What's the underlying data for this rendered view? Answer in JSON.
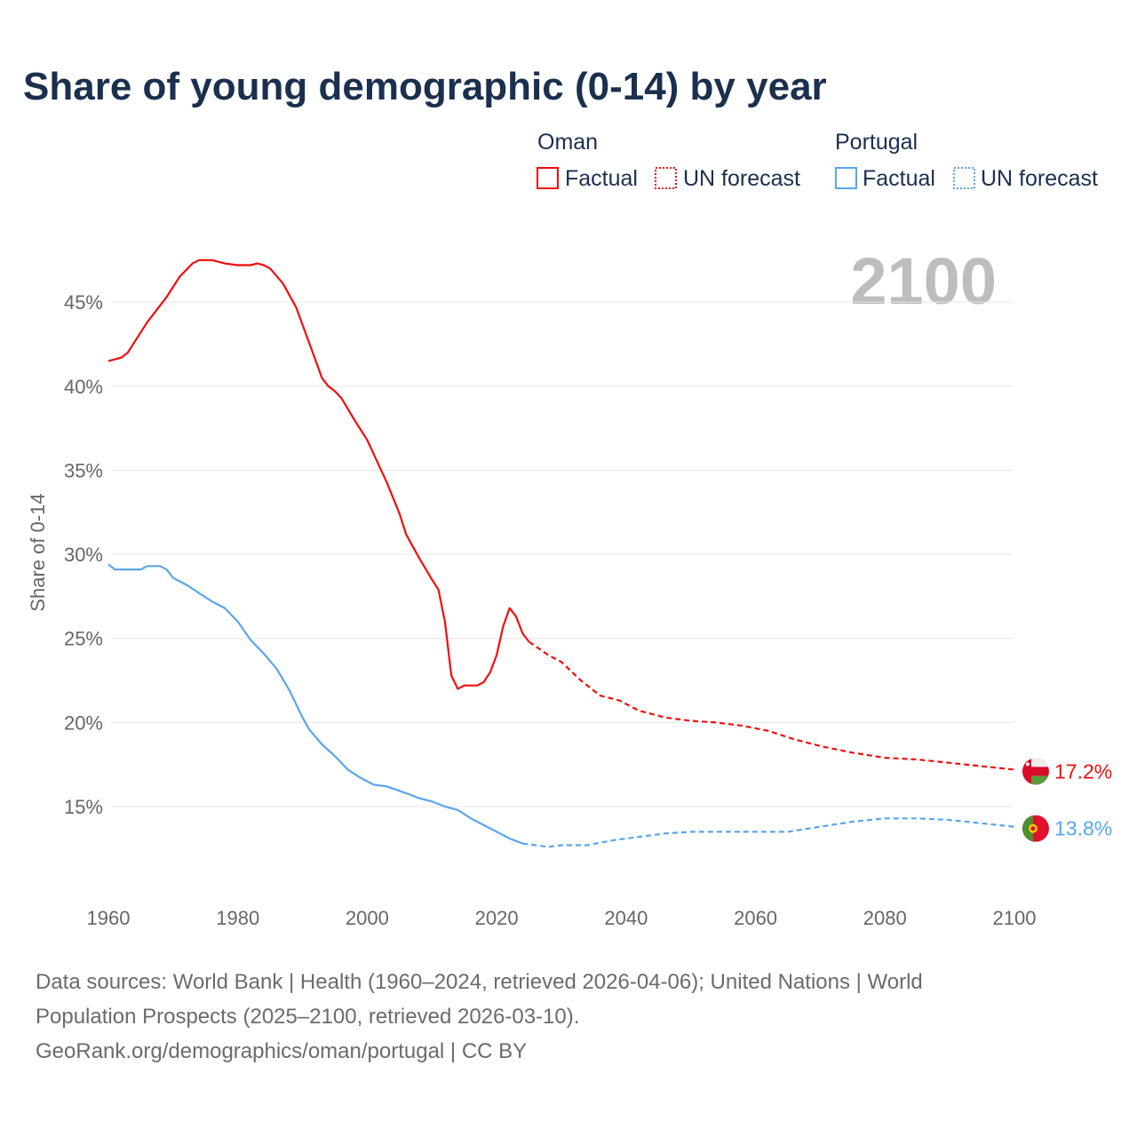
{
  "chart_data": {
    "type": "line",
    "title": "Share of young demographic (0-14) by year",
    "xlabel": "",
    "ylabel": "Share of 0-14",
    "xlim": [
      1960,
      2100
    ],
    "ylim": [
      10.5,
      48.5
    ],
    "x_ticks": [
      1960,
      1980,
      2000,
      2020,
      2040,
      2060,
      2080,
      2100
    ],
    "y_ticks": [
      15,
      20,
      25,
      30,
      35,
      40,
      45
    ],
    "y_tick_suffix": "%",
    "current_year_label": "2100",
    "grid": true,
    "legend": {
      "placement": "top-right",
      "groups": [
        {
          "country": "Oman",
          "factual": "Factual",
          "forecast": "UN forecast",
          "color": "#f00d0d"
        },
        {
          "country": "Portugal",
          "factual": "Factual",
          "forecast": "UN forecast",
          "color": "#5aa5ec"
        }
      ]
    },
    "series": [
      {
        "name": "Oman",
        "color": "#f00d0d",
        "end_label": "17.2%",
        "factual": [
          [
            1960,
            41.5
          ],
          [
            1962,
            41.7
          ],
          [
            1963,
            42.0
          ],
          [
            1966,
            43.8
          ],
          [
            1969,
            45.3
          ],
          [
            1971,
            46.5
          ],
          [
            1973,
            47.3
          ],
          [
            1974,
            47.5
          ],
          [
            1976,
            47.5
          ],
          [
            1978,
            47.3
          ],
          [
            1980,
            47.2
          ],
          [
            1982,
            47.2
          ],
          [
            1983,
            47.3
          ],
          [
            1984,
            47.2
          ],
          [
            1985,
            47.0
          ],
          [
            1987,
            46.1
          ],
          [
            1989,
            44.7
          ],
          [
            1991,
            42.6
          ],
          [
            1993,
            40.5
          ],
          [
            1994,
            40.0
          ],
          [
            1995,
            39.7
          ],
          [
            1996,
            39.3
          ],
          [
            1998,
            38.0
          ],
          [
            2000,
            36.8
          ],
          [
            2003,
            34.3
          ],
          [
            2005,
            32.4
          ],
          [
            2006,
            31.2
          ],
          [
            2008,
            29.8
          ],
          [
            2010,
            28.5
          ],
          [
            2011,
            27.9
          ],
          [
            2012,
            26.0
          ],
          [
            2013,
            22.8
          ],
          [
            2014,
            22.0
          ],
          [
            2015,
            22.2
          ],
          [
            2016,
            22.2
          ],
          [
            2017,
            22.2
          ],
          [
            2018,
            22.4
          ],
          [
            2019,
            23.0
          ],
          [
            2020,
            24.0
          ],
          [
            2021,
            25.7
          ],
          [
            2022,
            26.8
          ],
          [
            2023,
            26.3
          ],
          [
            2024,
            25.3
          ],
          [
            2025,
            24.8
          ]
        ],
        "forecast": [
          [
            2025,
            24.8
          ],
          [
            2028,
            24.0
          ],
          [
            2030,
            23.6
          ],
          [
            2033,
            22.5
          ],
          [
            2036,
            21.6
          ],
          [
            2039,
            21.3
          ],
          [
            2042,
            20.7
          ],
          [
            2046,
            20.3
          ],
          [
            2050,
            20.1
          ],
          [
            2054,
            20.0
          ],
          [
            2058,
            19.8
          ],
          [
            2062,
            19.5
          ],
          [
            2066,
            19.0
          ],
          [
            2070,
            18.6
          ],
          [
            2075,
            18.2
          ],
          [
            2080,
            17.9
          ],
          [
            2085,
            17.8
          ],
          [
            2090,
            17.6
          ],
          [
            2095,
            17.4
          ],
          [
            2100,
            17.2
          ]
        ]
      },
      {
        "name": "Portugal",
        "color": "#5aa5ec",
        "end_label": "13.8%",
        "factual": [
          [
            1960,
            29.4
          ],
          [
            1961,
            29.1
          ],
          [
            1965,
            29.1
          ],
          [
            1966,
            29.3
          ],
          [
            1968,
            29.3
          ],
          [
            1969,
            29.1
          ],
          [
            1970,
            28.6
          ],
          [
            1972,
            28.2
          ],
          [
            1974,
            27.7
          ],
          [
            1976,
            27.2
          ],
          [
            1978,
            26.8
          ],
          [
            1980,
            26.0
          ],
          [
            1982,
            24.9
          ],
          [
            1984,
            24.1
          ],
          [
            1986,
            23.2
          ],
          [
            1988,
            21.9
          ],
          [
            1990,
            20.3
          ],
          [
            1991,
            19.6
          ],
          [
            1993,
            18.7
          ],
          [
            1995,
            18.0
          ],
          [
            1997,
            17.2
          ],
          [
            1999,
            16.7
          ],
          [
            2001,
            16.3
          ],
          [
            2003,
            16.2
          ],
          [
            2006,
            15.8
          ],
          [
            2008,
            15.5
          ],
          [
            2010,
            15.3
          ],
          [
            2012,
            15.0
          ],
          [
            2014,
            14.8
          ],
          [
            2016,
            14.3
          ],
          [
            2020,
            13.5
          ],
          [
            2022,
            13.1
          ],
          [
            2024,
            12.8
          ]
        ],
        "forecast": [
          [
            2024,
            12.8
          ],
          [
            2026,
            12.7
          ],
          [
            2028,
            12.6
          ],
          [
            2030,
            12.7
          ],
          [
            2034,
            12.7
          ],
          [
            2038,
            13.0
          ],
          [
            2042,
            13.2
          ],
          [
            2046,
            13.4
          ],
          [
            2050,
            13.5
          ],
          [
            2060,
            13.5
          ],
          [
            2065,
            13.5
          ],
          [
            2070,
            13.8
          ],
          [
            2075,
            14.1
          ],
          [
            2080,
            14.3
          ],
          [
            2085,
            14.3
          ],
          [
            2090,
            14.2
          ],
          [
            2095,
            14.0
          ],
          [
            2100,
            13.8
          ]
        ]
      }
    ]
  },
  "footer": {
    "line1": "Data sources: World Bank | Health (1960–2024, retrieved 2026-04-06); United Nations | World",
    "line2": "Population Prospects (2025–2100, retrieved 2026-03-10).",
    "line3": "GeoRank.org/demographics/oman/portugal | CC BY"
  }
}
